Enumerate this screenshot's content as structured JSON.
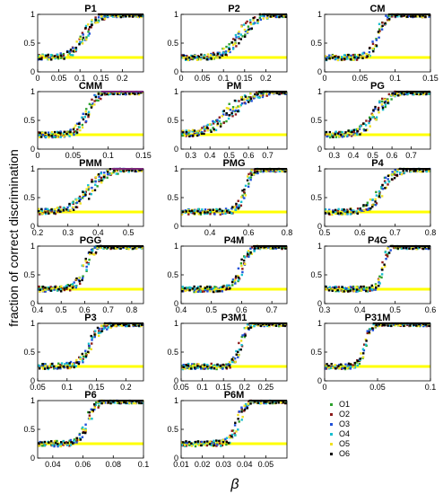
{
  "figure": {
    "ylabel": "fraction of correct discrimination",
    "xlabel": "β"
  },
  "series": [
    {
      "name": "O1",
      "color": "#2ca02c"
    },
    {
      "name": "O2",
      "color": "#8c1a1a"
    },
    {
      "name": "O3",
      "color": "#1f4fd8"
    },
    {
      "name": "O4",
      "color": "#17becf"
    },
    {
      "name": "O5",
      "color": "#f0e020"
    },
    {
      "name": "O6",
      "color": "#000000"
    }
  ],
  "colors": {
    "chance_line": "#ffff00",
    "mean_line": "#000000",
    "alt_line": "#cc44cc"
  },
  "chart_data": [
    {
      "type": "scatter",
      "title": "P1",
      "xlim": [
        0,
        0.25
      ],
      "ylim": [
        0,
        1
      ],
      "xticks": [
        "0",
        "0.05",
        "0.1",
        "0.15",
        "0.2"
      ],
      "xtickv": [
        0,
        0.05,
        0.1,
        0.15,
        0.2
      ],
      "yticks": [
        "0",
        "0.5",
        "1"
      ],
      "threshold": 0.11,
      "steep": 0.015,
      "chance": 0.25
    },
    {
      "type": "scatter",
      "title": "P2",
      "xlim": [
        0,
        0.25
      ],
      "ylim": [
        0,
        1
      ],
      "xticks": [
        "0",
        "0.05",
        "0.1",
        "0.15",
        "0.2"
      ],
      "xtickv": [
        0,
        0.05,
        0.1,
        0.15,
        0.2
      ],
      "yticks": [
        "0",
        "0.5",
        "1"
      ],
      "threshold": 0.14,
      "steep": 0.02,
      "chance": 0.25
    },
    {
      "type": "scatter",
      "title": "CM",
      "xlim": [
        0,
        0.15
      ],
      "ylim": [
        0,
        1
      ],
      "xticks": [
        "0",
        "0.05",
        "0.1",
        "0.15"
      ],
      "xtickv": [
        0,
        0.05,
        0.1,
        0.15
      ],
      "yticks": [
        "0",
        "0.5",
        "1"
      ],
      "threshold": 0.075,
      "steep": 0.006,
      "chance": 0.25
    },
    {
      "type": "scatter",
      "title": "CMM",
      "xlim": [
        0,
        0.15
      ],
      "ylim": [
        0,
        1
      ],
      "xticks": [
        "0",
        "0.05",
        "0.1",
        "0.15"
      ],
      "xtickv": [
        0,
        0.05,
        0.1,
        0.15
      ],
      "yticks": [
        "0",
        "0.5",
        "1"
      ],
      "threshold": 0.07,
      "steep": 0.008,
      "chance": 0.25,
      "alt_top": true
    },
    {
      "type": "scatter",
      "title": "PM",
      "xlim": [
        0.25,
        0.8
      ],
      "ylim": [
        0,
        1
      ],
      "xticks": [
        "0.3",
        "0.4",
        "0.5",
        "0.6",
        "0.7"
      ],
      "xtickv": [
        0.3,
        0.4,
        0.5,
        0.6,
        0.7
      ],
      "yticks": [
        "0",
        "0.5",
        "1"
      ],
      "threshold": 0.5,
      "steep": 0.06,
      "chance": 0.25
    },
    {
      "type": "scatter",
      "title": "PG",
      "xlim": [
        0.25,
        0.8
      ],
      "ylim": [
        0,
        1
      ],
      "xticks": [
        "0.3",
        "0.4",
        "0.5",
        "0.6",
        "0.7"
      ],
      "xtickv": [
        0.3,
        0.4,
        0.5,
        0.6,
        0.7
      ],
      "yticks": [
        "0",
        "0.5",
        "1"
      ],
      "threshold": 0.52,
      "steep": 0.04,
      "chance": 0.25
    },
    {
      "type": "scatter",
      "title": "PMM",
      "xlim": [
        0.2,
        0.55
      ],
      "ylim": [
        0,
        1
      ],
      "xticks": [
        "0.2",
        "0.3",
        "0.4",
        "0.5"
      ],
      "xtickv": [
        0.2,
        0.3,
        0.4,
        0.5
      ],
      "yticks": [
        "0",
        "0.5",
        "1"
      ],
      "threshold": 0.37,
      "steep": 0.03,
      "chance": 0.25,
      "alt_top": true
    },
    {
      "type": "scatter",
      "title": "PMG",
      "xlim": [
        0.25,
        0.8
      ],
      "ylim": [
        0,
        1
      ],
      "xticks": [
        "0.4",
        "0.6",
        "0.8"
      ],
      "xtickv": [
        0.4,
        0.6,
        0.8
      ],
      "yticks": [
        "0",
        "0.5",
        "1"
      ],
      "threshold": 0.58,
      "steep": 0.02,
      "chance": 0.25
    },
    {
      "type": "scatter",
      "title": "P4",
      "xlim": [
        0.5,
        0.8
      ],
      "ylim": [
        0,
        1
      ],
      "xticks": [
        "0.5",
        "0.6",
        "0.7",
        "0.8"
      ],
      "xtickv": [
        0.5,
        0.6,
        0.7,
        0.8
      ],
      "yticks": [
        "0",
        "0.5",
        "1"
      ],
      "threshold": 0.66,
      "steep": 0.02,
      "chance": 0.25
    },
    {
      "type": "scatter",
      "title": "PGG",
      "xlim": [
        0.4,
        0.85
      ],
      "ylim": [
        0,
        1
      ],
      "xticks": [
        "0.4",
        "0.5",
        "0.6",
        "0.7",
        "0.8"
      ],
      "xtickv": [
        0.4,
        0.5,
        0.6,
        0.7,
        0.8
      ],
      "yticks": [
        "0",
        "0.5",
        "1"
      ],
      "threshold": 0.6,
      "steep": 0.02,
      "chance": 0.25
    },
    {
      "type": "scatter",
      "title": "P4M",
      "xlim": [
        0.4,
        0.75
      ],
      "ylim": [
        0,
        1
      ],
      "xticks": [
        "0.4",
        "0.5",
        "0.6",
        "0.7"
      ],
      "xtickv": [
        0.4,
        0.5,
        0.6,
        0.7
      ],
      "yticks": [
        "0",
        "0.5",
        "1"
      ],
      "threshold": 0.6,
      "steep": 0.015,
      "chance": 0.25
    },
    {
      "type": "scatter",
      "title": "P4G",
      "xlim": [
        0.3,
        0.6
      ],
      "ylim": [
        0,
        1
      ],
      "xticks": [
        "0.3",
        "0.4",
        "0.5",
        "0.6"
      ],
      "xtickv": [
        0.3,
        0.4,
        0.5,
        0.6
      ],
      "yticks": [
        "0",
        "0.5",
        "1"
      ],
      "threshold": 0.465,
      "steep": 0.008,
      "chance": 0.25
    },
    {
      "type": "scatter",
      "title": "P3",
      "xlim": [
        0.05,
        0.23
      ],
      "ylim": [
        0,
        1
      ],
      "xticks": [
        "0.05",
        "0.1",
        "0.15",
        "0.2"
      ],
      "xtickv": [
        0.05,
        0.1,
        0.15,
        0.2
      ],
      "yticks": [
        "0",
        "0.5",
        "1"
      ],
      "threshold": 0.14,
      "steep": 0.01,
      "chance": 0.25
    },
    {
      "type": "scatter",
      "title": "P3M1",
      "xlim": [
        0.05,
        0.3
      ],
      "ylim": [
        0,
        1
      ],
      "xticks": [
        "0.05",
        "0.1",
        "0.15",
        "0.2",
        "0.25"
      ],
      "xtickv": [
        0.05,
        0.1,
        0.15,
        0.2,
        0.25
      ],
      "yticks": [
        "0",
        "0.5",
        "1"
      ],
      "threshold": 0.19,
      "steep": 0.008,
      "chance": 0.25
    },
    {
      "type": "scatter",
      "title": "P31M",
      "xlim": [
        0,
        0.1
      ],
      "ylim": [
        0,
        1
      ],
      "xticks": [
        "0",
        "0.05",
        "0.1"
      ],
      "xtickv": [
        0,
        0.05,
        0.1
      ],
      "yticks": [
        "0",
        "0.5",
        "1"
      ],
      "threshold": 0.038,
      "steep": 0.003,
      "chance": 0.25
    },
    {
      "type": "scatter",
      "title": "P6",
      "xlim": [
        0.03,
        0.1
      ],
      "ylim": [
        0,
        1
      ],
      "xticks": [
        "0.04",
        "0.06",
        "0.08",
        "0.1"
      ],
      "xtickv": [
        0.04,
        0.06,
        0.08,
        0.1
      ],
      "yticks": [
        "0",
        "0.5",
        "1"
      ],
      "threshold": 0.063,
      "steep": 0.003,
      "chance": 0.25
    },
    {
      "type": "scatter",
      "title": "P6M",
      "xlim": [
        0.01,
        0.06
      ],
      "ylim": [
        0,
        1
      ],
      "xticks": [
        "0.01",
        "0.02",
        "0.03",
        "0.04",
        "0.05"
      ],
      "xtickv": [
        0.01,
        0.02,
        0.03,
        0.04,
        0.05
      ],
      "yticks": [
        "0",
        "0.5",
        "1"
      ],
      "threshold": 0.037,
      "steep": 0.002,
      "chance": 0.25
    }
  ]
}
